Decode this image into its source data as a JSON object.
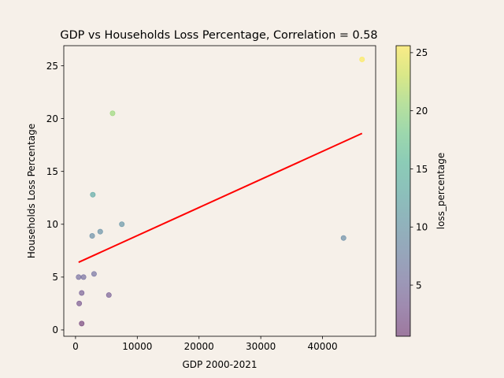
{
  "chart_data": {
    "type": "scatter",
    "title": "GDP vs Households Loss Percentage, Correlation = 0.58",
    "xlabel": "GDP 2000-2021",
    "ylabel": "Households Loss Percentage",
    "xlim": [
      -1900,
      48600
    ],
    "ylim": [
      -0.6,
      26.9
    ],
    "xticks": [
      0,
      10000,
      20000,
      30000,
      40000
    ],
    "xtick_labels": [
      "0",
      "10000",
      "20000",
      "30000",
      "40000"
    ],
    "yticks": [
      0,
      5,
      10,
      15,
      20,
      25
    ],
    "ytick_labels": [
      "0",
      "5",
      "10",
      "15",
      "20",
      "25"
    ],
    "grid": false,
    "points": [
      {
        "x": 1000,
        "y": 0.6
      },
      {
        "x": 600,
        "y": 2.5
      },
      {
        "x": 1000,
        "y": 3.5
      },
      {
        "x": 5400,
        "y": 3.3
      },
      {
        "x": 500,
        "y": 5.0
      },
      {
        "x": 1300,
        "y": 5.0
      },
      {
        "x": 3000,
        "y": 5.3
      },
      {
        "x": 2700,
        "y": 8.9
      },
      {
        "x": 4000,
        "y": 9.3
      },
      {
        "x": 7500,
        "y": 10.0
      },
      {
        "x": 43400,
        "y": 8.7
      },
      {
        "x": 2800,
        "y": 12.8
      },
      {
        "x": 6000,
        "y": 20.5
      },
      {
        "x": 46400,
        "y": 25.6
      }
    ],
    "trendline": {
      "x": [
        500,
        46400
      ],
      "y": [
        6.4,
        18.6
      ],
      "color": "#ff0000"
    },
    "colorbar": {
      "label": "loss_percentage",
      "colormap": "viridis",
      "alpha": 0.5,
      "range": [
        0.6,
        25.6
      ],
      "ticks": [
        5,
        10,
        15,
        20,
        25
      ],
      "tick_labels": [
        "5",
        "10",
        "15",
        "20",
        "25"
      ]
    },
    "colors": {
      "background": "#f6f0e9",
      "trendline": "#ff0000"
    }
  }
}
